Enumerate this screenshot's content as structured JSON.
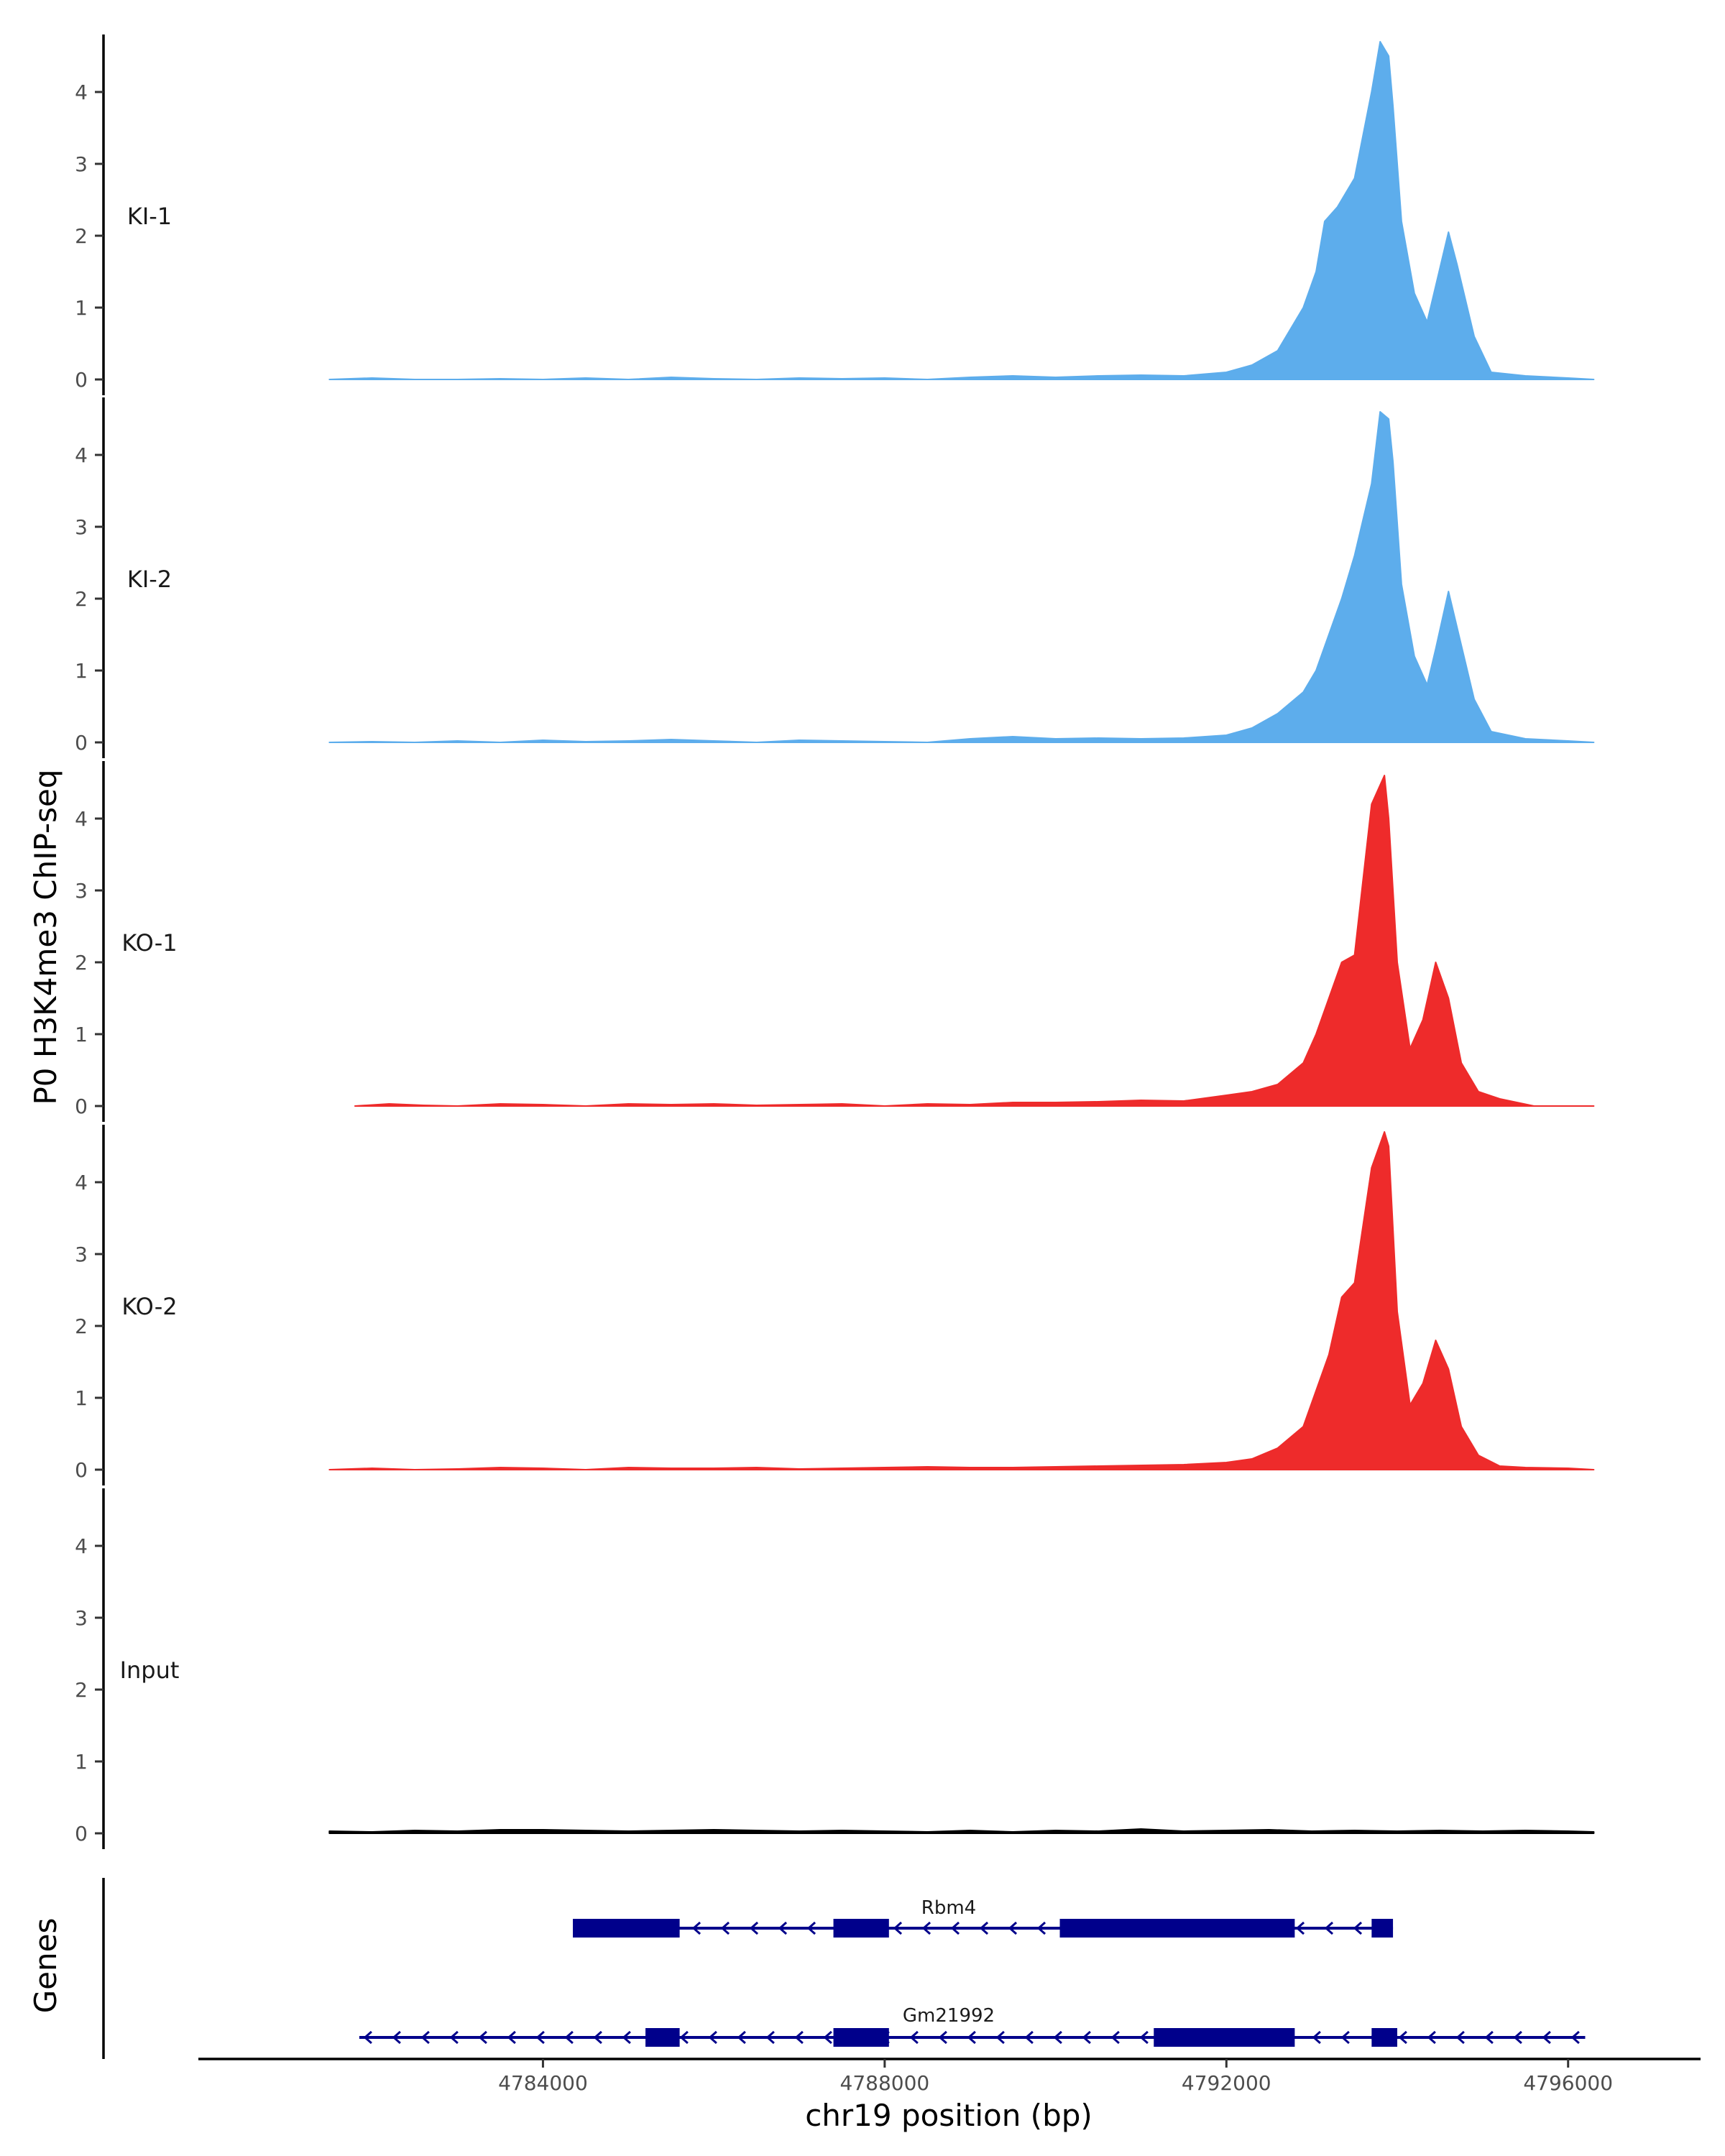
{
  "chart_data": {
    "type": "area",
    "ylabel": "P0 H3K4me3 ChIP-seq",
    "xlabel": "chr19 position (bp)",
    "xlim": [
      4780000,
      4797500
    ],
    "ylim": [
      0,
      4.8
    ],
    "yticks": [
      0,
      1,
      2,
      3,
      4
    ],
    "xticks": [
      4784000,
      4788000,
      4792000,
      4796000
    ],
    "xtick_labels": [
      "4784000",
      "4788000",
      "4792000",
      "4796000"
    ],
    "colors": {
      "KI": "#5DADEC",
      "KO": "#EE2B2B",
      "Input": "#000000",
      "genes": "#00008B"
    },
    "series": [
      {
        "name": "KI-1",
        "color": "#5DADEC",
        "x": [
          4781500,
          4782000,
          4782500,
          4783000,
          4783500,
          4784000,
          4784500,
          4785000,
          4785500,
          4786000,
          4786500,
          4787000,
          4787500,
          4788000,
          4788500,
          4789000,
          4789500,
          4790000,
          4790500,
          4791000,
          4791500,
          4792000,
          4792300,
          4792600,
          4792900,
          4793050,
          4793150,
          4793300,
          4793500,
          4793700,
          4793800,
          4793900,
          4793950,
          4794050,
          4794200,
          4794350,
          4794450,
          4794600,
          4794700,
          4794900,
          4795100,
          4795500,
          4796000,
          4796300
        ],
        "values": [
          0,
          0.02,
          0,
          0,
          0.01,
          0,
          0.02,
          0,
          0.03,
          0.01,
          0,
          0.02,
          0.01,
          0.02,
          0,
          0.03,
          0.05,
          0.03,
          0.05,
          0.06,
          0.05,
          0.1,
          0.2,
          0.4,
          1.0,
          1.5,
          2.2,
          2.4,
          2.8,
          4.0,
          4.7,
          4.5,
          3.8,
          2.2,
          1.2,
          0.8,
          1.3,
          2.05,
          1.6,
          0.6,
          0.1,
          0.05,
          0.02,
          0
        ]
      },
      {
        "name": "KI-2",
        "color": "#5DADEC",
        "x": [
          4781500,
          4782000,
          4782500,
          4783000,
          4783500,
          4784000,
          4784500,
          4785000,
          4785500,
          4786000,
          4786500,
          4787000,
          4787500,
          4788000,
          4788500,
          4789000,
          4789500,
          4790000,
          4790500,
          4791000,
          4791500,
          4792000,
          4792300,
          4792600,
          4792900,
          4793050,
          4793200,
          4793350,
          4793500,
          4793700,
          4793800,
          4793900,
          4793950,
          4794050,
          4794200,
          4794350,
          4794450,
          4794600,
          4794700,
          4794900,
          4795100,
          4795500,
          4796000,
          4796300
        ],
        "values": [
          0,
          0.01,
          0,
          0.02,
          0,
          0.03,
          0.01,
          0.02,
          0.04,
          0.02,
          0,
          0.03,
          0.02,
          0.01,
          0,
          0.05,
          0.08,
          0.05,
          0.06,
          0.05,
          0.06,
          0.1,
          0.2,
          0.4,
          0.7,
          1.0,
          1.5,
          2.0,
          2.6,
          3.6,
          4.6,
          4.5,
          3.9,
          2.2,
          1.2,
          0.8,
          1.3,
          2.1,
          1.6,
          0.6,
          0.15,
          0.05,
          0.02,
          0
        ]
      },
      {
        "name": "KO-1",
        "color": "#EE2B2B",
        "x": [
          4781800,
          4782200,
          4782600,
          4783000,
          4783500,
          4784000,
          4784500,
          4785000,
          4785500,
          4786000,
          4786500,
          4787000,
          4787500,
          4788000,
          4788500,
          4789000,
          4789500,
          4790000,
          4790500,
          4791000,
          4791500,
          4792000,
          4792300,
          4792600,
          4792900,
          4793050,
          4793200,
          4793350,
          4793500,
          4793700,
          4793850,
          4793900,
          4794000,
          4794150,
          4794300,
          4794450,
          4794600,
          4794750,
          4794950,
          4795200,
          4795400,
          4795600,
          4796300
        ],
        "values": [
          0,
          0.03,
          0.01,
          0,
          0.03,
          0.02,
          0,
          0.03,
          0.02,
          0.03,
          0.01,
          0.02,
          0.03,
          0,
          0.03,
          0.02,
          0.05,
          0.05,
          0.06,
          0.08,
          0.07,
          0.15,
          0.2,
          0.3,
          0.6,
          1.0,
          1.5,
          2.0,
          2.1,
          4.2,
          4.6,
          4.0,
          2.0,
          0.8,
          1.2,
          2.0,
          1.5,
          0.6,
          0.2,
          0.1,
          0.05,
          0,
          0
        ]
      },
      {
        "name": "KO-2",
        "color": "#EE2B2B",
        "x": [
          4781500,
          4782000,
          4782500,
          4783000,
          4783500,
          4784000,
          4784500,
          4785000,
          4785500,
          4786000,
          4786500,
          4787000,
          4787500,
          4788000,
          4788500,
          4789000,
          4789500,
          4790000,
          4790500,
          4791000,
          4791500,
          4792000,
          4792300,
          4792600,
          4792900,
          4793050,
          4793200,
          4793350,
          4793500,
          4793700,
          4793850,
          4793900,
          4794000,
          4794150,
          4794300,
          4794450,
          4794600,
          4794750,
          4794950,
          4795200,
          4795500,
          4796000,
          4796300
        ],
        "values": [
          0,
          0.02,
          0,
          0.01,
          0.03,
          0.02,
          0,
          0.03,
          0.02,
          0.02,
          0.03,
          0.01,
          0.02,
          0.03,
          0.04,
          0.03,
          0.03,
          0.04,
          0.05,
          0.06,
          0.07,
          0.1,
          0.15,
          0.3,
          0.6,
          1.1,
          1.6,
          2.4,
          2.6,
          4.2,
          4.7,
          4.5,
          2.2,
          0.9,
          1.2,
          1.8,
          1.4,
          0.6,
          0.2,
          0.05,
          0.03,
          0.02,
          0
        ]
      },
      {
        "name": "Input",
        "color": "#000000",
        "x": [
          4781500,
          4782000,
          4782500,
          4783000,
          4783500,
          4784000,
          4784500,
          4785000,
          4785500,
          4786000,
          4786500,
          4787000,
          4787500,
          4788000,
          4788500,
          4789000,
          4789500,
          4790000,
          4790500,
          4791000,
          4791500,
          4792000,
          4792500,
          4793000,
          4793500,
          4794000,
          4794500,
          4795000,
          4795500,
          4796000,
          4796300
        ],
        "values": [
          0.03,
          0.02,
          0.04,
          0.03,
          0.05,
          0.05,
          0.04,
          0.03,
          0.04,
          0.05,
          0.04,
          0.03,
          0.04,
          0.03,
          0.02,
          0.04,
          0.02,
          0.04,
          0.03,
          0.06,
          0.03,
          0.04,
          0.05,
          0.03,
          0.04,
          0.03,
          0.04,
          0.03,
          0.04,
          0.03,
          0.02
        ]
      }
    ],
    "genes": [
      {
        "name": "Rbm4",
        "start": 4784350,
        "end": 4793950,
        "strand": "-",
        "exons": [
          [
            4784350,
            4785600
          ],
          [
            4787400,
            4788050
          ],
          [
            4790050,
            4792800
          ],
          [
            4793700,
            4793950
          ]
        ]
      },
      {
        "name": "Gm21992",
        "start": 4781850,
        "end": 4796200,
        "strand": "-",
        "exons": [
          [
            4785200,
            4785600
          ],
          [
            4787400,
            4788050
          ],
          [
            4791150,
            4792800
          ],
          [
            4793700,
            4794000
          ]
        ]
      }
    ],
    "genes_track_label": "Genes"
  }
}
